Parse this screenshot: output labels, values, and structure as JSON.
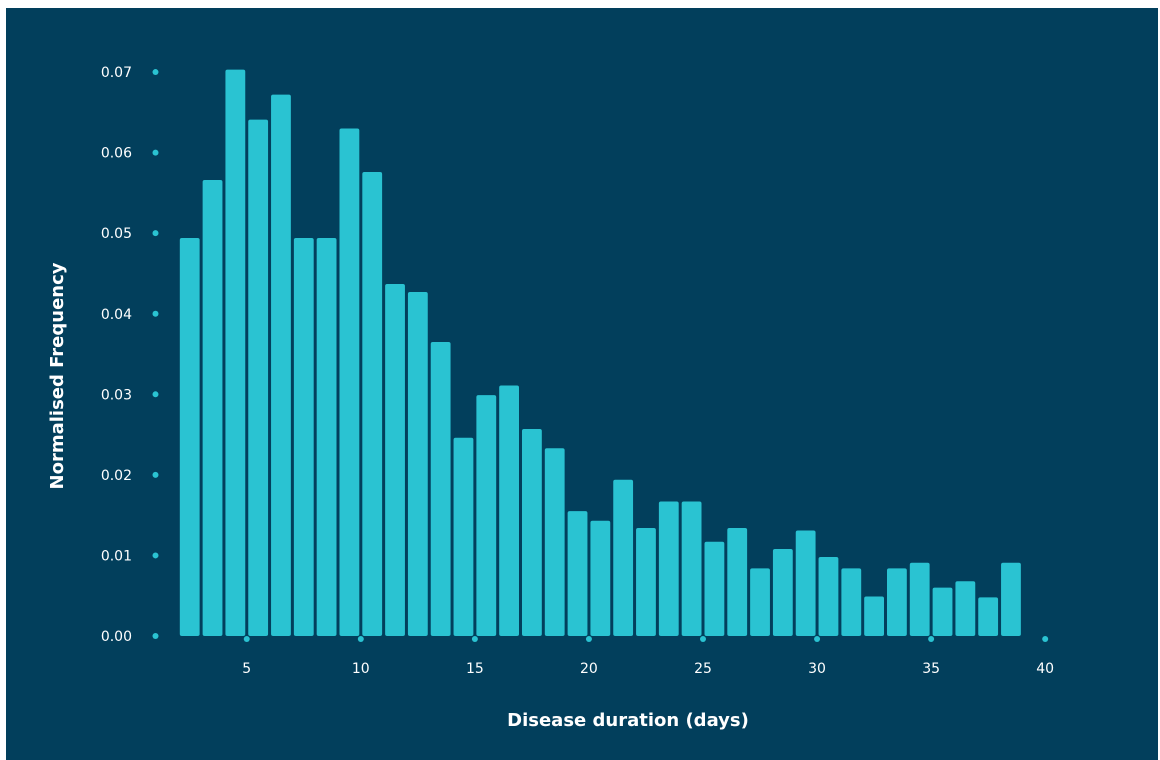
{
  "chart_data": {
    "type": "bar",
    "title": "",
    "xlabel": "Disease duration (days)",
    "ylabel": "Normalised Frequency",
    "xlim": [
      1,
      41
    ],
    "ylim": [
      0,
      0.071
    ],
    "x_ticks": [
      5,
      10,
      15,
      20,
      25,
      30,
      35,
      40
    ],
    "x_tick_labels": [
      "5",
      "10",
      "15",
      "20",
      "25",
      "30",
      "35",
      "40"
    ],
    "y_ticks": [
      0,
      0.01,
      0.02,
      0.03,
      0.04,
      0.05,
      0.06,
      0.07
    ],
    "y_tick_labels": [
      "0.00",
      "0.01",
      "0.02",
      "0.03",
      "0.04",
      "0.05",
      "0.06",
      "0.07"
    ],
    "grid": false,
    "bin_width": 1,
    "x": [
      2.5,
      3.5,
      4.5,
      5.5,
      6.5,
      7.5,
      8.5,
      9.5,
      10.5,
      11.5,
      12.5,
      13.5,
      14.5,
      15.5,
      16.5,
      17.5,
      18.5,
      19.5,
      20.5,
      21.5,
      22.5,
      23.5,
      24.5,
      25.5,
      26.5,
      27.5,
      28.5,
      29.5,
      30.5,
      31.5,
      32.5,
      33.5,
      34.5,
      35.5,
      36.5,
      37.5,
      38.5
    ],
    "values": [
      0.0494,
      0.0566,
      0.0703,
      0.0641,
      0.0672,
      0.0494,
      0.0494,
      0.063,
      0.0576,
      0.0437,
      0.0427,
      0.0365,
      0.0246,
      0.0299,
      0.0311,
      0.0257,
      0.0233,
      0.0155,
      0.0143,
      0.0194,
      0.0134,
      0.0167,
      0.0167,
      0.0117,
      0.0134,
      0.0084,
      0.0108,
      0.0131,
      0.0098,
      0.0084,
      0.0049,
      0.0084,
      0.0091,
      0.006,
      0.0068,
      0.0048,
      0.0091
    ],
    "colors": {
      "background": "#023f5c",
      "bar": "#2ac3d2",
      "tick_dot": "#2ac3d2",
      "text": "#ffffff"
    }
  }
}
